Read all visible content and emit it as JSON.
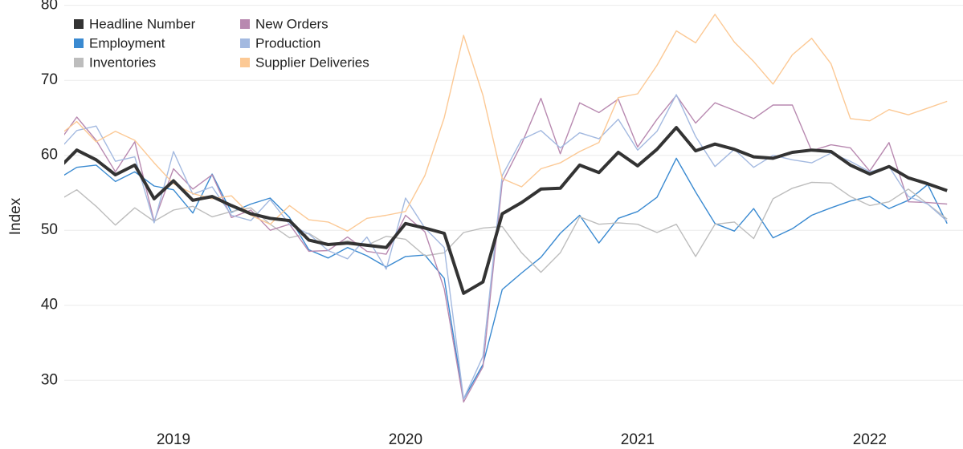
{
  "chart_data": {
    "type": "line",
    "y_label": "Index",
    "categories": [
      null,
      null,
      null,
      null,
      null,
      null,
      "2019",
      null,
      null,
      null,
      null,
      null,
      null,
      null,
      null,
      null,
      null,
      null,
      "2020",
      null,
      null,
      null,
      null,
      null,
      null,
      null,
      null,
      null,
      null,
      null,
      "2021",
      null,
      null,
      null,
      null,
      null,
      null,
      null,
      null,
      null,
      null,
      null,
      "2022",
      null,
      null,
      null,
      null
    ],
    "ylim": [
      25,
      80.5
    ],
    "yticks": [
      30,
      40,
      50,
      60,
      70,
      80
    ],
    "grid": true,
    "legend": "top-left",
    "series": [
      {
        "name": "Headline Number",
        "color": "#333333",
        "values": [
          58.1,
          60.7,
          59.4,
          57.4,
          58.7,
          54.2,
          56.6,
          54.0,
          54.5,
          53.3,
          52.2,
          51.6,
          51.3,
          48.7,
          48.1,
          48.3,
          48.0,
          47.7,
          50.9,
          50.3,
          49.6,
          41.6,
          43.1,
          52.2,
          53.7,
          55.5,
          55.6,
          58.7,
          57.7,
          60.4,
          58.6,
          60.8,
          63.7,
          60.6,
          61.5,
          60.8,
          59.8,
          59.6,
          60.4,
          60.7,
          60.5,
          58.7,
          57.5,
          58.5,
          57.0,
          56.2,
          55.3
        ]
      },
      {
        "name": "Employment",
        "color": "#3a8ad1",
        "values": [
          56.8,
          58.4,
          58.7,
          56.5,
          57.8,
          55.9,
          55.4,
          52.3,
          57.5,
          52.4,
          53.5,
          54.3,
          51.7,
          47.4,
          46.3,
          47.7,
          46.6,
          45.1,
          46.5,
          46.7,
          43.6,
          27.5,
          32.1,
          42.1,
          44.3,
          46.4,
          49.6,
          52.0,
          48.3,
          51.6,
          52.5,
          54.4,
          59.6,
          55.1,
          50.9,
          49.9,
          52.9,
          49.0,
          50.2,
          52.0,
          53.0,
          53.9,
          54.5,
          52.9,
          54.0,
          56.1,
          50.9
        ]
      },
      {
        "name": "Inventories",
        "color": "#bdbdbd",
        "values": [
          53.9,
          55.4,
          53.2,
          50.7,
          53.0,
          51.2,
          52.7,
          53.2,
          51.8,
          52.5,
          53.0,
          50.8,
          49.0,
          49.6,
          48.0,
          48.6,
          48.0,
          49.2,
          48.8,
          46.6,
          47.0,
          49.7,
          50.3,
          50.5,
          47.0,
          44.4,
          47.0,
          51.8,
          50.8,
          51.0,
          50.8,
          49.7,
          50.8,
          46.5,
          50.8,
          51.1,
          48.9,
          54.2,
          55.6,
          56.4,
          56.3,
          54.5,
          53.3,
          53.8,
          55.5,
          53.5,
          51.5
        ]
      },
      {
        "name": "New Orders",
        "color": "#b889b0",
        "values": [
          61.5,
          65.1,
          62.0,
          57.8,
          61.8,
          51.2,
          58.2,
          55.5,
          57.4,
          51.7,
          52.7,
          50.0,
          50.8,
          47.2,
          47.3,
          49.1,
          47.2,
          46.8,
          52.0,
          49.8,
          42.2,
          27.1,
          31.8,
          56.4,
          61.5,
          67.6,
          60.2,
          67.0,
          65.7,
          67.5,
          61.1,
          64.8,
          68.0,
          64.3,
          67.0,
          66.0,
          64.9,
          66.7,
          66.7,
          60.6,
          61.4,
          61.0,
          57.9,
          61.7,
          53.8,
          53.7,
          53.5
        ]
      },
      {
        "name": "Production",
        "color": "#a3b9e0",
        "values": [
          60.5,
          63.3,
          63.9,
          59.2,
          59.8,
          51.0,
          60.5,
          54.8,
          55.8,
          52.0,
          51.3,
          54.1,
          50.8,
          49.5,
          47.3,
          46.2,
          49.1,
          44.8,
          54.3,
          50.3,
          47.7,
          27.5,
          33.2,
          57.3,
          62.1,
          63.3,
          61.0,
          63.0,
          62.2,
          64.8,
          60.7,
          63.2,
          68.1,
          62.5,
          58.5,
          60.8,
          58.4,
          60.0,
          59.4,
          59.0,
          60.3,
          59.2,
          57.8,
          58.5,
          54.5,
          53.5,
          51.2
        ]
      },
      {
        "name": "Supplier Deliveries",
        "color": "#fcc995",
        "values": [
          62.5,
          64.5,
          61.8,
          63.2,
          62.0,
          59.0,
          56.2,
          54.9,
          54.2,
          54.6,
          52.0,
          50.8,
          53.3,
          51.4,
          51.1,
          49.9,
          51.6,
          52.0,
          52.5,
          57.3,
          65.0,
          76.0,
          68.0,
          56.9,
          55.8,
          58.2,
          59.0,
          60.5,
          61.7,
          67.7,
          68.2,
          72.0,
          76.6,
          75.0,
          78.8,
          75.1,
          72.5,
          69.5,
          73.4,
          75.6,
          72.2,
          64.9,
          64.6,
          66.1,
          65.4,
          66.3,
          67.2
        ]
      }
    ]
  }
}
